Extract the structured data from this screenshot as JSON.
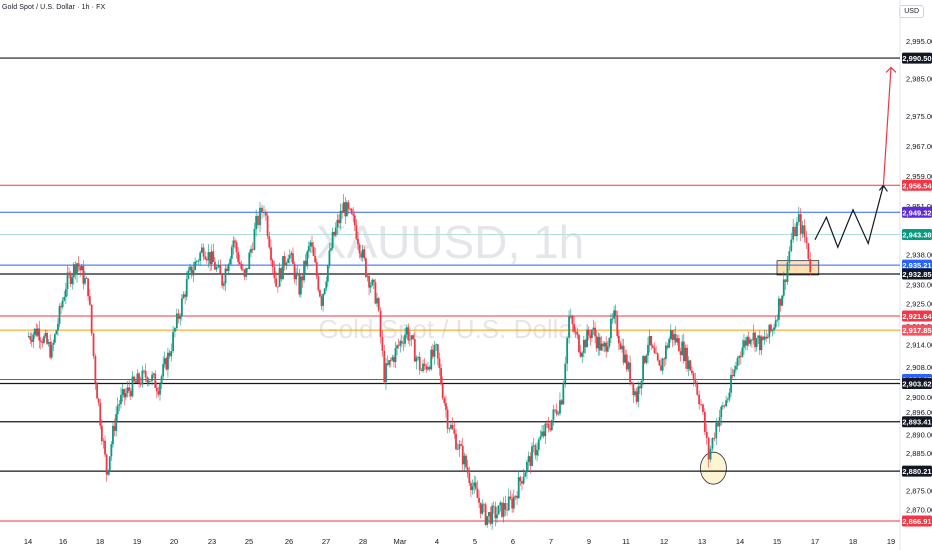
{
  "header": {
    "symbol_line": "Gold Spot / U.S. Dollar · 1h · FX",
    "currency": "USD"
  },
  "watermark": {
    "ticker": "XAUUSD, 1h",
    "name": "Gold Spot / U.S. Dollar"
  },
  "colors": {
    "up": "#089981",
    "down": "#f23645",
    "red_level": "#f23645",
    "blue_level": "#2962ff",
    "teal_level": "#b2dfdb",
    "orange_level": "#ff9800",
    "black": "#131722",
    "zone_fill": "#ffe0b2",
    "circle_fill": "#fff3cd"
  },
  "chart_data": {
    "type": "candlestick",
    "title": "",
    "ylim": [
      2864.5,
      3002
    ],
    "xlim": [
      13.2,
      19.3
    ],
    "y_ticks": [
      2870,
      2875,
      2880,
      2885,
      2890,
      2896,
      2900,
      2908,
      2914,
      2919,
      2925,
      2930,
      2938,
      2943,
      2951,
      2959,
      2967,
      2975,
      2985,
      2995
    ],
    "x_ticks": [
      {
        "x": 14,
        "label": "14"
      },
      {
        "x": 15,
        "label": "16"
      },
      {
        "x": 16,
        "label": "18"
      },
      {
        "x": 17,
        "label": "19"
      },
      {
        "x": 18,
        "label": "20"
      },
      {
        "x": 19,
        "label": "23"
      },
      {
        "x": 20,
        "label": "25"
      },
      {
        "x": 21,
        "label": "26"
      },
      {
        "x": 22,
        "label": "27"
      },
      {
        "x": 23,
        "label": "28"
      },
      {
        "x": 24,
        "label": "Mar"
      },
      {
        "x": 25,
        "label": "4"
      },
      {
        "x": 26,
        "label": "5"
      },
      {
        "x": 27,
        "label": "6"
      },
      {
        "x": 28,
        "label": "7"
      },
      {
        "x": 29,
        "label": "9"
      },
      {
        "x": 30,
        "label": "11"
      },
      {
        "x": 31,
        "label": "12"
      },
      {
        "x": 32,
        "label": "13"
      },
      {
        "x": 33,
        "label": "14"
      },
      {
        "x": 34,
        "label": "15"
      },
      {
        "x": 35,
        "label": "17"
      },
      {
        "x": 36,
        "label": "18"
      },
      {
        "x": 37,
        "label": "19"
      }
    ],
    "levels": [
      {
        "price": 2990.5,
        "label": "2,990.50",
        "color": "black",
        "badge": "#131722"
      },
      {
        "price": 2956.54,
        "label": "2,956.54",
        "color": "red_level",
        "badge": "#f23645"
      },
      {
        "price": 2949.32,
        "label": "2,949.32",
        "color": "blue_level",
        "badge": "#5b2bd6"
      },
      {
        "price": 2943.38,
        "label": "2,943.38",
        "color": "teal_level",
        "badge": "#089981"
      },
      {
        "price": 2935.21,
        "label": "2,935.21",
        "color": "blue_level",
        "badge": "#2962ff"
      },
      {
        "price": 2932.85,
        "label": "2,932.85",
        "color": "black",
        "badge": "#131722"
      },
      {
        "price": 2921.64,
        "label": "2,921.64",
        "color": "red_level",
        "badge": "#f23645"
      },
      {
        "price": 2917.85,
        "label": "2,917.85",
        "color": "orange_level",
        "badge": "#f7525f"
      },
      {
        "price": 2904.67,
        "label": "2,904.67",
        "color": "blue_level",
        "badge": "#2962ff"
      },
      {
        "price": 2903.62,
        "label": "2,903.62",
        "color": "black",
        "badge": "#131722"
      },
      {
        "price": 2893.41,
        "label": "2,893.41",
        "color": "black",
        "badge": "#131722"
      },
      {
        "price": 2880.21,
        "label": "2,880.21",
        "color": "black",
        "badge": "#131722"
      },
      {
        "price": 2866.91,
        "label": "2,866.91",
        "color": "red_level",
        "badge": "#f23645"
      }
    ],
    "path": [
      [
        14.0,
        2916
      ],
      [
        14.3,
        2918
      ],
      [
        14.7,
        2912
      ],
      [
        15.1,
        2930
      ],
      [
        15.4,
        2936
      ],
      [
        15.7,
        2929
      ],
      [
        15.9,
        2905
      ],
      [
        16.2,
        2880
      ],
      [
        16.5,
        2898
      ],
      [
        16.9,
        2903
      ],
      [
        17.3,
        2906
      ],
      [
        17.6,
        2903
      ],
      [
        17.9,
        2912
      ],
      [
        18.1,
        2920
      ],
      [
        18.4,
        2932
      ],
      [
        18.8,
        2940
      ],
      [
        19.1,
        2935
      ],
      [
        19.3,
        2931
      ],
      [
        19.6,
        2942
      ],
      [
        19.9,
        2931
      ],
      [
        20.2,
        2946
      ],
      [
        20.4,
        2951
      ],
      [
        20.7,
        2930
      ],
      [
        21.0,
        2939
      ],
      [
        21.3,
        2929
      ],
      [
        21.6,
        2941
      ],
      [
        21.9,
        2926
      ],
      [
        22.2,
        2942
      ],
      [
        22.5,
        2951
      ],
      [
        22.8,
        2946
      ],
      [
        23.1,
        2934
      ],
      [
        23.4,
        2926
      ],
      [
        23.6,
        2906
      ],
      [
        23.9,
        2912
      ],
      [
        24.2,
        2918
      ],
      [
        24.6,
        2907
      ],
      [
        25.0,
        2912
      ],
      [
        25.3,
        2894
      ],
      [
        25.7,
        2884
      ],
      [
        26.0,
        2875
      ],
      [
        26.3,
        2868
      ],
      [
        26.6,
        2869
      ],
      [
        27.0,
        2872
      ],
      [
        27.3,
        2880
      ],
      [
        27.7,
        2888
      ],
      [
        28.0,
        2893
      ],
      [
        28.3,
        2900
      ],
      [
        28.5,
        2921
      ],
      [
        28.8,
        2913
      ],
      [
        29.1,
        2918
      ],
      [
        29.4,
        2912
      ],
      [
        29.7,
        2921
      ],
      [
        30.0,
        2910
      ],
      [
        30.3,
        2900
      ],
      [
        30.6,
        2915
      ],
      [
        30.9,
        2907
      ],
      [
        31.2,
        2917
      ],
      [
        31.5,
        2913
      ],
      [
        31.8,
        2906
      ],
      [
        32.0,
        2898
      ],
      [
        32.2,
        2884
      ],
      [
        32.4,
        2893
      ],
      [
        32.7,
        2900
      ],
      [
        33.0,
        2912
      ],
      [
        33.3,
        2917
      ],
      [
        33.6,
        2914
      ],
      [
        33.9,
        2918
      ],
      [
        34.2,
        2930
      ],
      [
        34.4,
        2942
      ],
      [
        34.6,
        2947
      ],
      [
        34.8,
        2941
      ],
      [
        34.9,
        2935
      ]
    ],
    "circle": {
      "x": 32.3,
      "y": 2881
    },
    "zone": {
      "x0": 34.0,
      "x1": 35.1,
      "y0": 2932.6,
      "y1": 2936.4
    },
    "projection_zigzag": [
      [
        35.0,
        2942
      ],
      [
        35.3,
        2948
      ],
      [
        35.6,
        2940
      ],
      [
        36.0,
        2950
      ],
      [
        36.4,
        2941
      ],
      [
        36.8,
        2956.5
      ]
    ],
    "projection_arrow": {
      "from": [
        36.8,
        2956.5
      ],
      "to": [
        37.5,
        2988.0
      ]
    }
  }
}
